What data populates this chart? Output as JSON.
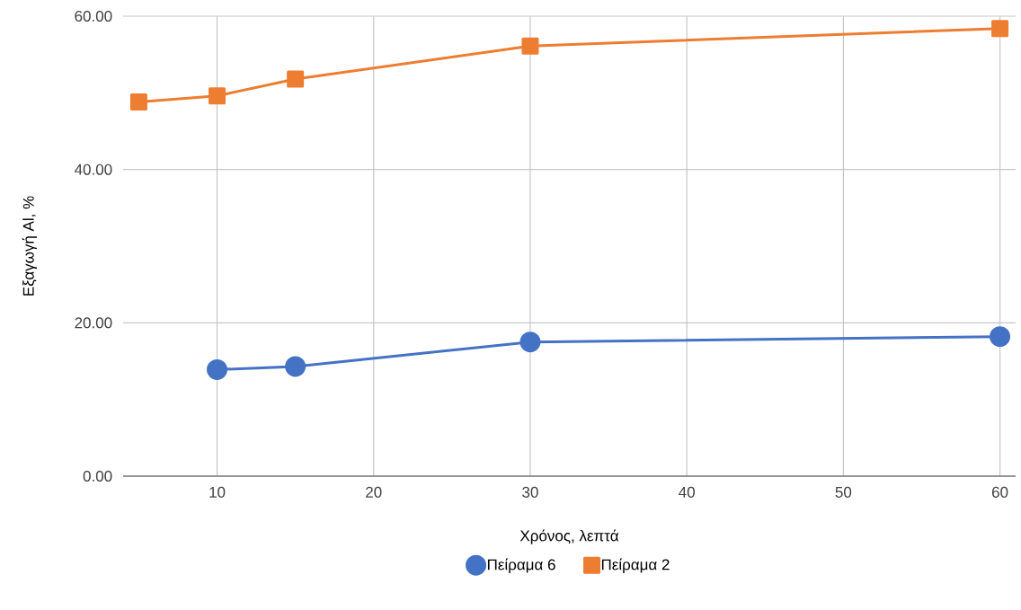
{
  "chart_data": {
    "type": "line",
    "xlabel": "Χρόνος, λεπτά",
    "ylabel": "Εξαγωγή Al, %",
    "xlim": [
      4,
      61
    ],
    "ylim": [
      0,
      60
    ],
    "xticks": [
      10,
      20,
      30,
      40,
      50,
      60
    ],
    "yticks": [
      {
        "value": 0,
        "label": "0.00"
      },
      {
        "value": 20,
        "label": "20.00"
      },
      {
        "value": 40,
        "label": "40.00"
      },
      {
        "value": 60,
        "label": "60.00"
      }
    ],
    "grid": true,
    "legend": "bottom",
    "line_style": "solid",
    "series": [
      {
        "name": "Πείραμα 6",
        "color": "#4472c4",
        "marker": "circle",
        "x": [
          10,
          15,
          30,
          60
        ],
        "values": [
          13.9,
          14.3,
          17.5,
          18.2
        ]
      },
      {
        "name": "Πείραμα 2",
        "color": "#ed7d31",
        "marker": "square",
        "x": [
          5,
          10,
          15,
          30,
          60
        ],
        "values": [
          48.8,
          49.6,
          51.8,
          56.1,
          58.4
        ]
      }
    ]
  }
}
